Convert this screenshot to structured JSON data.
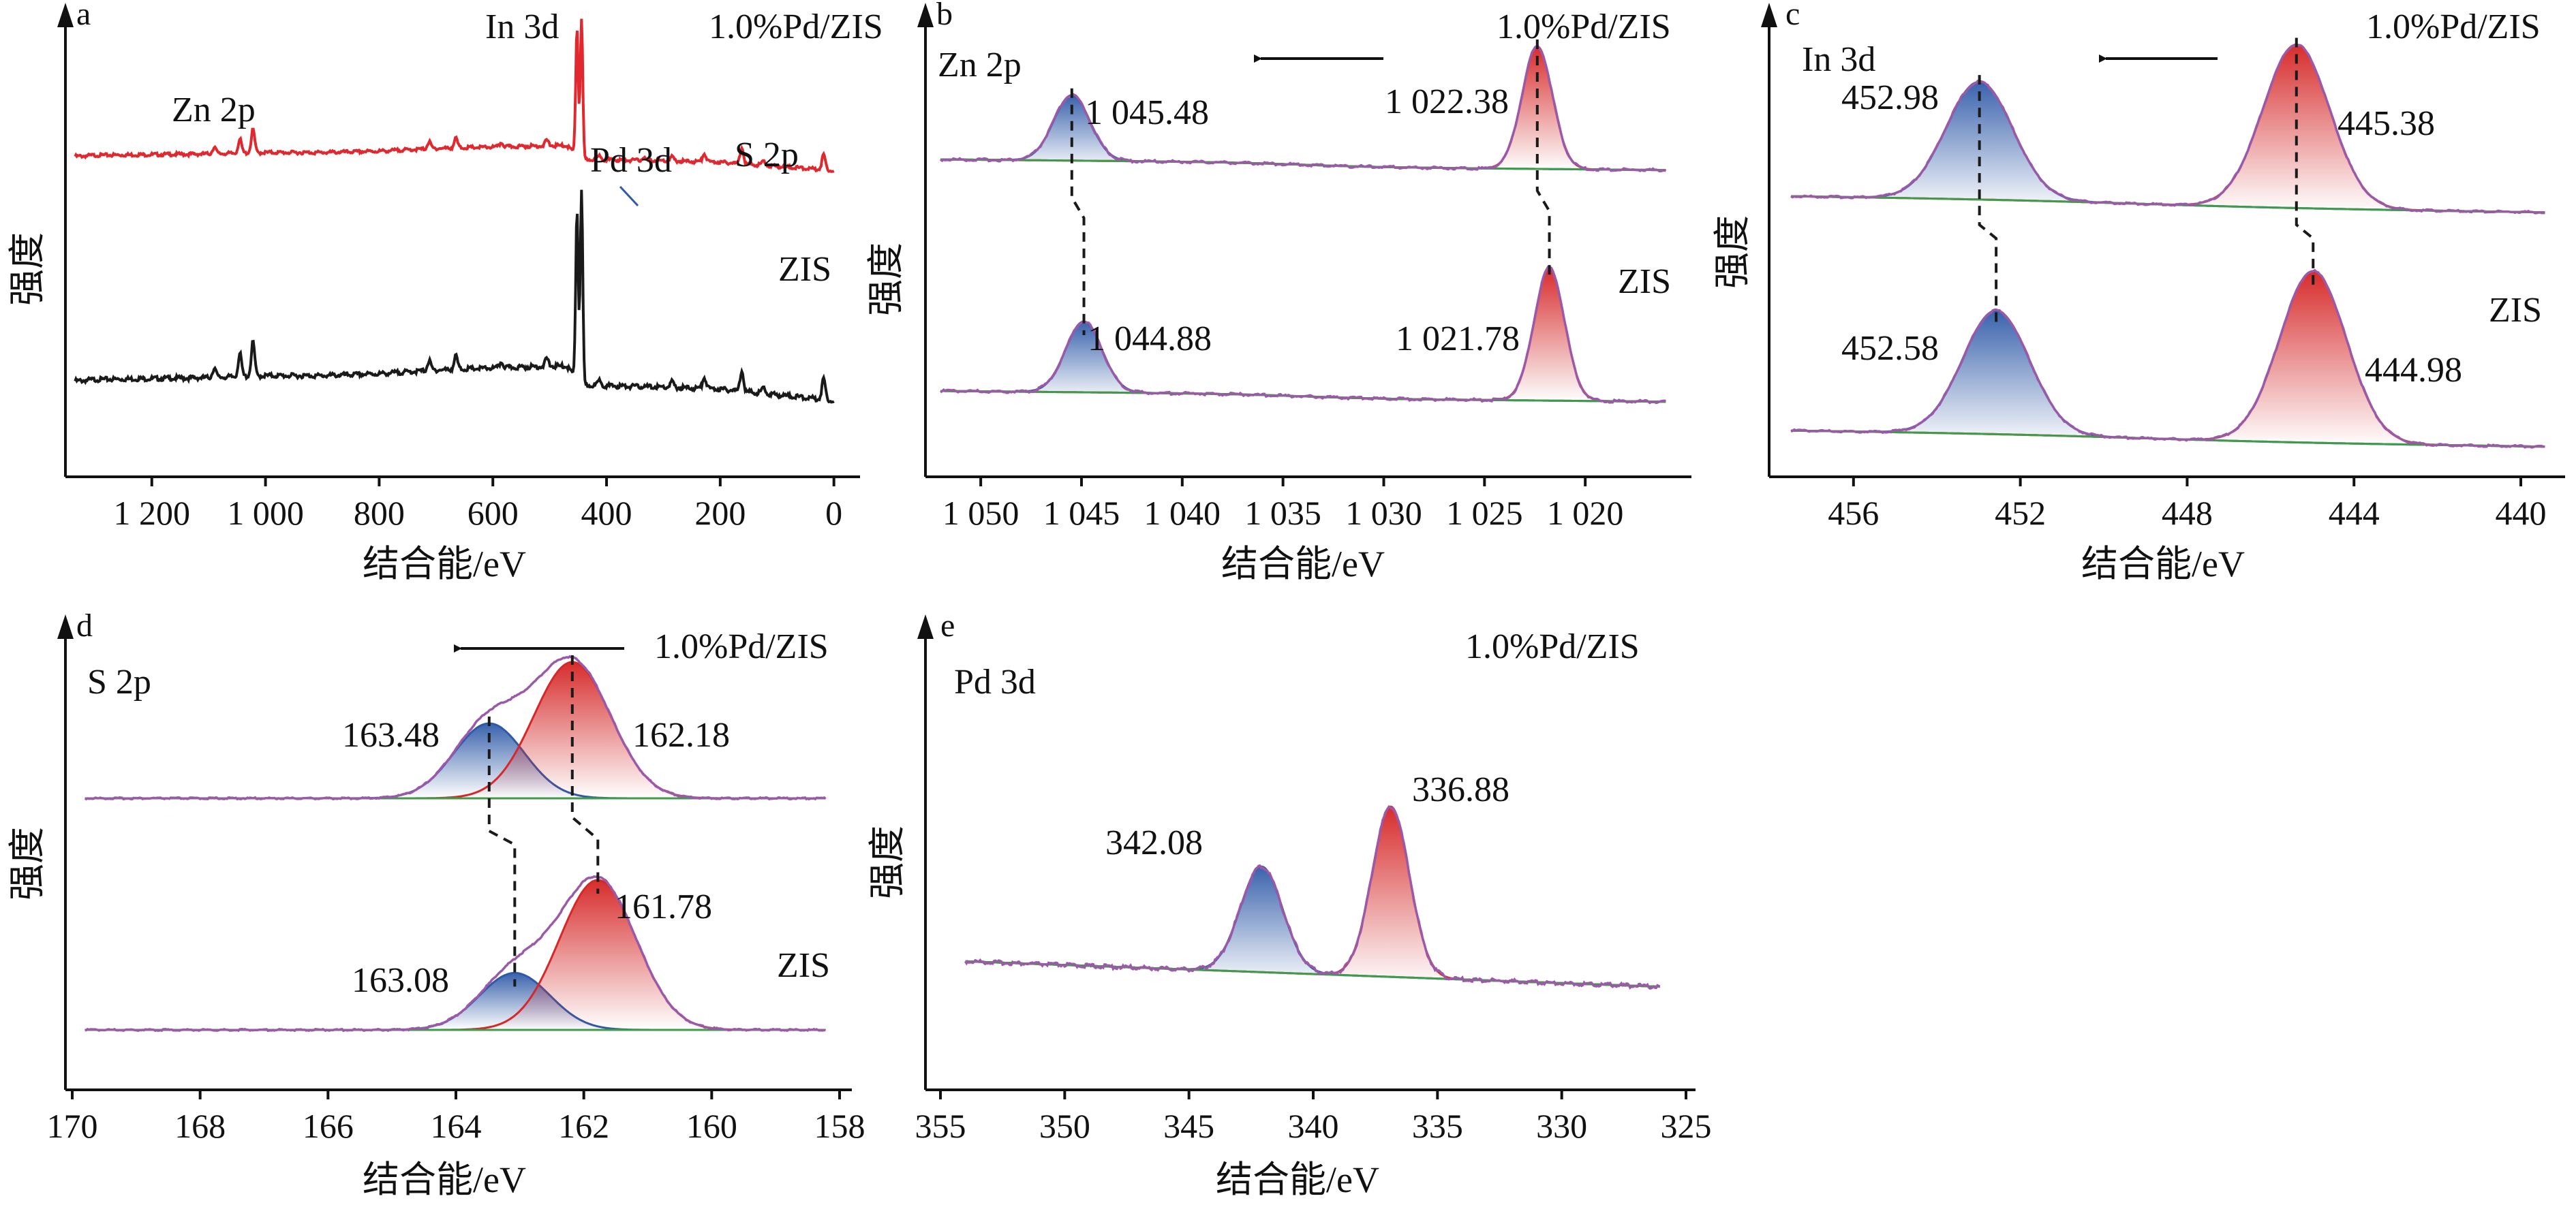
{
  "chart_data": [
    {
      "panel": "a",
      "type": "line",
      "xlabel": "结合能/eV",
      "ylabel": "强度",
      "xlim": [
        1340,
        -10
      ],
      "xreverse": true,
      "xticks": [
        1200,
        1000,
        800,
        600,
        400,
        200,
        0
      ],
      "xtick_labels": [
        "1 200",
        "1 000",
        "800",
        "600",
        "400",
        "200",
        "0"
      ],
      "series": [
        {
          "name": "1.0%Pd/ZIS",
          "color": "#e0282e",
          "offset": 0.62,
          "baseline": [
            [
              1340,
              0.0
            ],
            [
              1300,
              0.01
            ],
            [
              1100,
              0.02
            ],
            [
              1000,
              0.03
            ],
            [
              900,
              0.03
            ],
            [
              800,
              0.04
            ],
            [
              700,
              0.06
            ],
            [
              600,
              0.07
            ],
            [
              500,
              0.08
            ],
            [
              470,
              0.08
            ],
            [
              440,
              -0.02
            ],
            [
              300,
              -0.03
            ],
            [
              200,
              -0.04
            ],
            [
              100,
              -0.07
            ],
            [
              0,
              -0.1
            ]
          ],
          "peaks": [
            [
              1045,
              0.1
            ],
            [
              1022,
              0.17
            ],
            [
              1090,
              0.05
            ],
            [
              712,
              0.05
            ],
            [
              665,
              0.07
            ],
            [
              585,
              0.03
            ],
            [
              505,
              0.04
            ],
            [
              452,
              0.92
            ],
            [
              444,
              1.0
            ],
            [
              412,
              0.03
            ],
            [
              335,
              0.02
            ],
            [
              285,
              0.03
            ],
            [
              228,
              0.06
            ],
            [
              162,
              0.12
            ],
            [
              124,
              0.03
            ],
            [
              18,
              0.11
            ]
          ]
        },
        {
          "name": "ZIS",
          "color": "#1a1a1a",
          "offset": 0.02,
          "baseline": [
            [
              1340,
              0.0
            ],
            [
              1300,
              0.01
            ],
            [
              1100,
              0.02
            ],
            [
              1000,
              0.03
            ],
            [
              900,
              0.03
            ],
            [
              800,
              0.04
            ],
            [
              700,
              0.06
            ],
            [
              600,
              0.07
            ],
            [
              500,
              0.08
            ],
            [
              470,
              0.08
            ],
            [
              440,
              -0.02
            ],
            [
              300,
              -0.03
            ],
            [
              200,
              -0.04
            ],
            [
              100,
              -0.07
            ],
            [
              0,
              -0.1
            ]
          ],
          "peaks": [
            [
              1045,
              0.12
            ],
            [
              1022,
              0.18
            ],
            [
              1090,
              0.05
            ],
            [
              712,
              0.05
            ],
            [
              665,
              0.07
            ],
            [
              585,
              0.03
            ],
            [
              505,
              0.04
            ],
            [
              452,
              0.88
            ],
            [
              444,
              1.0
            ],
            [
              412,
              0.03
            ],
            [
              285,
              0.03
            ],
            [
              228,
              0.06
            ],
            [
              162,
              0.11
            ],
            [
              124,
              0.03
            ],
            [
              18,
              0.11
            ]
          ]
        }
      ],
      "annotations": [
        "In 3d",
        "Zn 2p",
        "Pd 3d",
        "S 2p",
        "1.0%Pd/ZIS",
        "ZIS"
      ]
    },
    {
      "panel": "b",
      "type": "line",
      "xlabel": "结合能/eV",
      "ylabel": "强度",
      "xlim": [
        1052,
        1015
      ],
      "xreverse": true,
      "xticks": [
        1050,
        1045,
        1040,
        1035,
        1030,
        1025,
        1020
      ],
      "xtick_labels": [
        "1 050",
        "1 045",
        "1 040",
        "1 035",
        "1 030",
        "1 025",
        "1 020"
      ],
      "title_tag": "Zn 2p",
      "series": [
        {
          "name": "1.0%Pd/ZIS",
          "peaks": [
            1045.48,
            1022.38
          ],
          "labels": [
            "1 045.48",
            "1 022.38"
          ],
          "heights": [
            0.4,
            0.75
          ]
        },
        {
          "name": "ZIS",
          "peaks": [
            1044.88,
            1021.78
          ],
          "labels": [
            "1 044.88",
            "1 021.78"
          ],
          "heights": [
            0.4,
            0.75
          ]
        }
      ],
      "arrow": "toward higher binding energy"
    },
    {
      "panel": "c",
      "type": "line",
      "xlabel": "结合能/eV",
      "ylabel": "强度",
      "xlim": [
        457.5,
        439.2
      ],
      "xreverse": true,
      "xticks": [
        456,
        452,
        448,
        444,
        440
      ],
      "xtick_labels": [
        "456",
        "452",
        "448",
        "444",
        "440"
      ],
      "title_tag": "In 3d",
      "series": [
        {
          "name": "1.0%Pd/ZIS",
          "peaks": [
            452.98,
            445.38
          ],
          "labels": [
            "452.98",
            "445.38"
          ],
          "heights": [
            0.72,
            1.0
          ]
        },
        {
          "name": "ZIS",
          "peaks": [
            452.58,
            444.98
          ],
          "labels": [
            "452.58",
            "444.98"
          ],
          "heights": [
            0.72,
            1.0
          ]
        }
      ],
      "arrow": "toward higher binding energy"
    },
    {
      "panel": "d",
      "type": "line",
      "xlabel": "结合能/eV",
      "ylabel": "强度",
      "xlim": [
        170,
        158
      ],
      "xreverse": true,
      "xticks": [
        170,
        168,
        166,
        164,
        162,
        160,
        158
      ],
      "xtick_labels": [
        "170",
        "168",
        "166",
        "164",
        "162",
        "160",
        "158"
      ],
      "title_tag": "S 2p",
      "series": [
        {
          "name": "1.0%Pd/ZIS",
          "peaks": [
            163.48,
            162.18
          ],
          "labels": [
            "163.48",
            "162.18"
          ],
          "heights": [
            0.55,
            1.0
          ]
        },
        {
          "name": "ZIS",
          "peaks": [
            163.08,
            161.78
          ],
          "labels": [
            "163.08",
            "161.78"
          ],
          "heights": [
            0.38,
            1.0
          ]
        }
      ],
      "arrow": "toward higher binding energy"
    },
    {
      "panel": "e",
      "type": "line",
      "xlabel": "结合能/eV",
      "ylabel": "强度",
      "xlim": [
        355,
        325
      ],
      "xreverse": true,
      "xticks": [
        355,
        350,
        345,
        340,
        335,
        330,
        325
      ],
      "xtick_labels": [
        "355",
        "350",
        "345",
        "340",
        "335",
        "330",
        "325"
      ],
      "title_tag": "Pd 3d",
      "series": [
        {
          "name": "1.0%Pd/ZIS",
          "peaks": [
            342.08,
            336.88
          ],
          "labels": [
            "342.08",
            "336.88"
          ],
          "heights": [
            0.62,
            1.0
          ]
        }
      ]
    }
  ],
  "panels": {
    "a": {
      "letter": "a",
      "ylabel": "强度",
      "xlabel": "结合能/eV",
      "tag_in": "In 3d",
      "tag_zn": "Zn 2p",
      "tag_pd": "Pd 3d",
      "tag_s": "S 2p",
      "sample_top": "1.0%Pd/ZIS",
      "sample_bot": "ZIS"
    },
    "b": {
      "letter": "b",
      "ylabel": "强度",
      "xlabel": "结合能/eV",
      "tag": "Zn 2p",
      "sample_top": "1.0%Pd/ZIS",
      "sample_bot": "ZIS",
      "p1_top": "1 045.48",
      "p2_top": "1 022.38",
      "p1_bot": "1 044.88",
      "p2_bot": "1 021.78"
    },
    "c": {
      "letter": "c",
      "ylabel": "强度",
      "xlabel": "结合能/eV",
      "tag": "In 3d",
      "sample_top": "1.0%Pd/ZIS",
      "sample_bot": "ZIS",
      "p1_top": "452.98",
      "p2_top": "445.38",
      "p1_bot": "452.58",
      "p2_bot": "444.98"
    },
    "d": {
      "letter": "d",
      "ylabel": "强度",
      "xlabel": "结合能/eV",
      "tag": "S 2p",
      "sample_top": "1.0%Pd/ZIS",
      "sample_bot": "ZIS",
      "p1_top": "163.48",
      "p2_top": "162.18",
      "p1_bot": "163.08",
      "p2_bot": "161.78"
    },
    "e": {
      "letter": "e",
      "ylabel": "强度",
      "xlabel": "结合能/eV",
      "tag": "Pd 3d",
      "sample_top": "1.0%Pd/ZIS",
      "p1_top": "342.08",
      "p2_top": "336.88"
    }
  },
  "colors": {
    "survey_top": "#e0282e",
    "survey_bottom": "#1a1a1a",
    "envelope": "#9b5aa8",
    "background_fit": "#3f9a4a",
    "doublet_high": "#2f5aa8",
    "doublet_low": "#d62828",
    "dashed": "#1a1a1a"
  }
}
